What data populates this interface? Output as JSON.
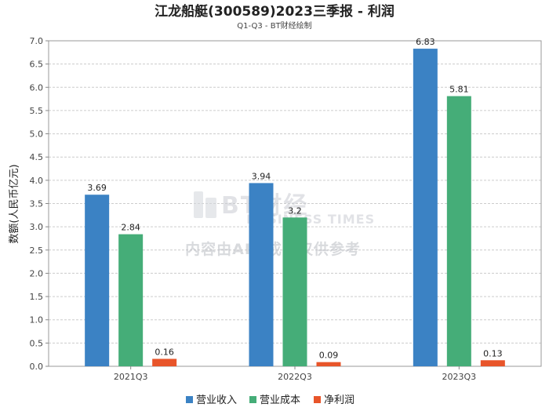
{
  "chart_data": {
    "type": "bar",
    "title": "江龙船艇(300589)2023三季报 - 利润",
    "subtitle": "Q1-Q3 - BT财经绘制",
    "ylabel": "数额(人民币亿元)",
    "xlabel": "",
    "ylim": [
      0,
      7.0
    ],
    "yticks": [
      "0.0",
      "0.5",
      "1.0",
      "1.5",
      "2.0",
      "2.5",
      "3.0",
      "3.5",
      "4.0",
      "4.5",
      "5.0",
      "5.5",
      "6.0",
      "6.5",
      "7.0"
    ],
    "grid": true,
    "legend_position": "bottom",
    "categories": [
      "2021Q3",
      "2022Q3",
      "2023Q3"
    ],
    "series": [
      {
        "name": "营业收入",
        "color": "#3b82c4",
        "values": [
          3.69,
          3.94,
          6.83
        ],
        "labels": [
          "3.69",
          "3.94",
          "6.83"
        ]
      },
      {
        "name": "营业成本",
        "color": "#45ad78",
        "values": [
          2.84,
          3.2,
          5.81
        ],
        "labels": [
          "2.84",
          "3.2",
          "5.81"
        ]
      },
      {
        "name": "净利润",
        "color": "#e8552a",
        "values": [
          0.16,
          0.09,
          0.13
        ],
        "labels": [
          "0.16",
          "0.09",
          "0.13"
        ]
      }
    ]
  },
  "watermark": {
    "brand": "BT财经",
    "brand_en": "BUSINESS TIMES",
    "notice": "内容由AI生成，仅供参考"
  }
}
